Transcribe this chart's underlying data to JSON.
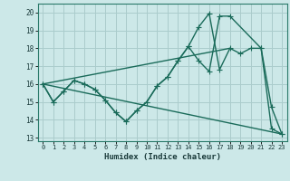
{
  "xlabel": "Humidex (Indice chaleur)",
  "xlim": [
    -0.5,
    23.5
  ],
  "ylim": [
    12.8,
    20.5
  ],
  "yticks": [
    13,
    14,
    15,
    16,
    17,
    18,
    19,
    20
  ],
  "xticks": [
    0,
    1,
    2,
    3,
    4,
    5,
    6,
    7,
    8,
    9,
    10,
    11,
    12,
    13,
    14,
    15,
    16,
    17,
    18,
    19,
    20,
    21,
    22,
    23
  ],
  "background_color": "#cce8e8",
  "grid_color": "#aacccc",
  "line_color": "#1a6b5a",
  "line1_x": [
    0,
    1,
    2,
    3,
    4,
    5,
    6,
    7,
    8,
    9,
    10,
    11,
    12,
    13,
    14,
    15,
    16,
    17,
    18,
    21,
    22,
    23
  ],
  "line1_y": [
    16,
    15,
    15.6,
    16.2,
    16.0,
    15.7,
    15.1,
    14.4,
    13.9,
    14.5,
    15.0,
    15.9,
    16.4,
    17.3,
    18.1,
    17.3,
    16.7,
    19.8,
    19.8,
    18.0,
    14.7,
    13.2
  ],
  "line2_x": [
    0,
    1,
    2,
    3,
    4,
    5,
    6,
    7,
    8,
    9,
    10,
    11,
    12,
    13,
    14,
    15,
    16,
    17,
    18,
    19,
    20,
    21,
    22,
    23
  ],
  "line2_y": [
    16,
    15,
    15.6,
    16.2,
    16.0,
    15.7,
    15.1,
    14.4,
    13.9,
    14.5,
    15.0,
    15.9,
    16.4,
    17.3,
    18.1,
    19.2,
    19.95,
    16.8,
    18.0,
    17.7,
    18.0,
    18.0,
    13.5,
    13.2
  ],
  "line3_x": [
    0,
    23
  ],
  "line3_y": [
    16.0,
    13.2
  ],
  "line4_x": [
    0,
    18
  ],
  "line4_y": [
    16.0,
    18.0
  ]
}
